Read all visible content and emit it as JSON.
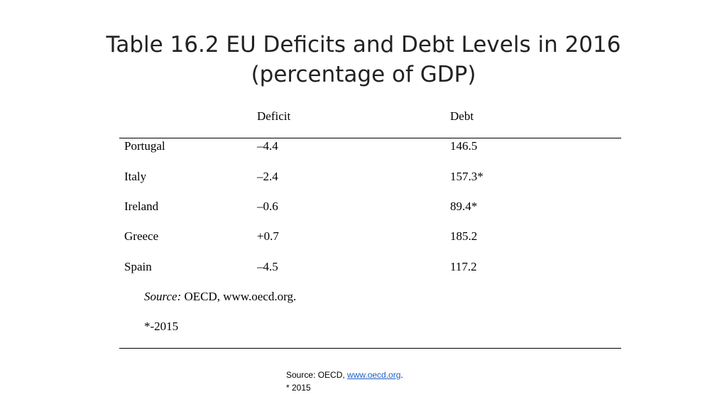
{
  "title": {
    "line1": "Table 16.2 EU Deficits and Debt Levels in 2016",
    "line2": "(percentage of GDP)"
  },
  "table": {
    "headers": [
      "",
      "Deficit",
      "Debt"
    ],
    "rows": [
      [
        "Portugal",
        "–4.4",
        "146.5"
      ],
      [
        "Italy",
        "–2.4",
        "157.3*"
      ],
      [
        "Ireland",
        "–0.6",
        "89.4*"
      ],
      [
        "Greece",
        "+0.7",
        "185.2"
      ],
      [
        "Spain",
        "–4.5",
        "117.2"
      ]
    ],
    "source_label": "Source:",
    "source_text": " OECD, www.oecd.org.",
    "asterisk_note": "*-2015"
  },
  "footer": {
    "source_prefix": "Source: OECD, ",
    "source_link": "www.oecd.org",
    "source_suffix": ".",
    "asterisk_note": "* 2015"
  }
}
